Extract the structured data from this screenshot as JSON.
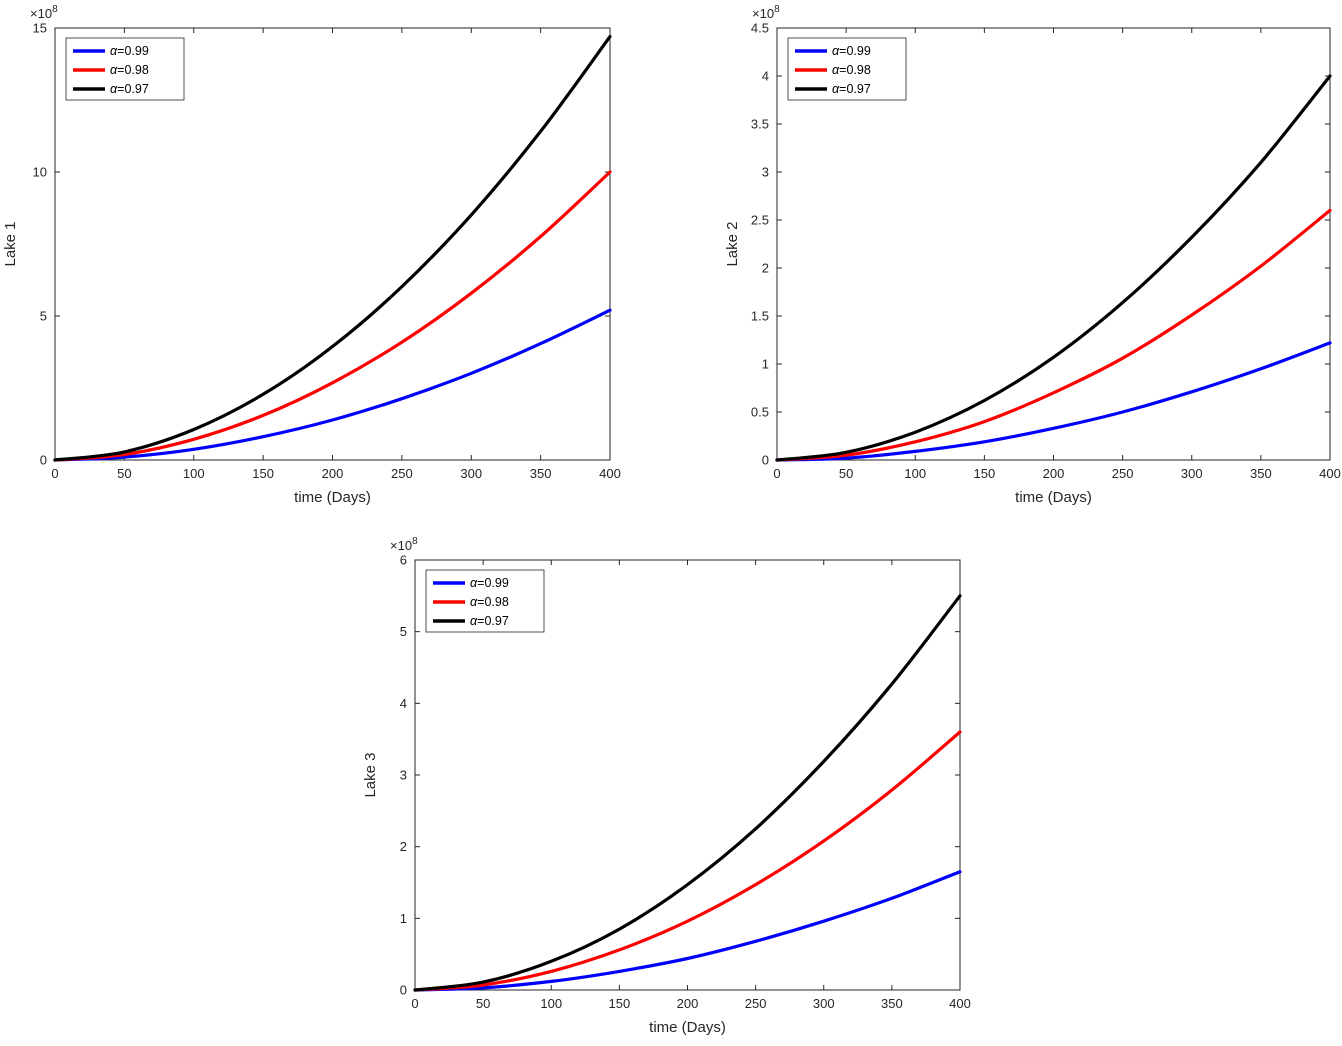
{
  "figure": {
    "background": "#ffffff"
  },
  "chart_data": [
    {
      "type": "line",
      "title": "",
      "ylabel": "Lake 1",
      "xlabel": "time (Days)",
      "y_scale_label": {
        "base": "×10",
        "power": "8"
      },
      "xlim": [
        0,
        400
      ],
      "ylim": [
        0,
        15
      ],
      "xticks": [
        0,
        50,
        100,
        150,
        200,
        250,
        300,
        350,
        400
      ],
      "yticks": [
        0,
        5,
        10,
        15
      ],
      "grid": false,
      "legend_position": "northwest",
      "x": [
        0,
        50,
        100,
        150,
        200,
        250,
        300,
        350,
        400
      ],
      "series": [
        {
          "name": "α=0.99",
          "color": "#0000ff",
          "values": [
            0,
            0.1,
            0.37,
            0.81,
            1.39,
            2.13,
            3.01,
            4.04,
            5.2
          ]
        },
        {
          "name": "α=0.98",
          "color": "#ff0000",
          "values": [
            0,
            0.19,
            0.72,
            1.55,
            2.68,
            4.09,
            5.79,
            7.76,
            10.0
          ]
        },
        {
          "name": "α=0.97",
          "color": "#000000",
          "values": [
            0,
            0.28,
            1.06,
            2.28,
            3.94,
            6.02,
            8.51,
            11.41,
            14.7
          ]
        }
      ]
    },
    {
      "type": "line",
      "title": "",
      "ylabel": "Lake 2",
      "xlabel": "time (Days)",
      "y_scale_label": {
        "base": "×10",
        "power": "8"
      },
      "xlim": [
        0,
        400
      ],
      "ylim": [
        0,
        4.5
      ],
      "xticks": [
        0,
        50,
        100,
        150,
        200,
        250,
        300,
        350,
        400
      ],
      "yticks": [
        0,
        0.5,
        1,
        1.5,
        2,
        2.5,
        3,
        3.5,
        4,
        4.5
      ],
      "grid": false,
      "legend_position": "northwest",
      "x": [
        0,
        50,
        100,
        150,
        200,
        250,
        300,
        350,
        400
      ],
      "series": [
        {
          "name": "α=0.99",
          "color": "#0000ff",
          "values": [
            0,
            0.02,
            0.09,
            0.19,
            0.33,
            0.5,
            0.71,
            0.95,
            1.22
          ]
        },
        {
          "name": "α=0.98",
          "color": "#ff0000",
          "values": [
            0,
            0.05,
            0.19,
            0.4,
            0.7,
            1.06,
            1.51,
            2.02,
            2.6
          ]
        },
        {
          "name": "α=0.97",
          "color": "#000000",
          "values": [
            0,
            0.08,
            0.29,
            0.62,
            1.07,
            1.64,
            2.32,
            3.1,
            4.0
          ]
        }
      ]
    },
    {
      "type": "line",
      "title": "",
      "ylabel": "Lake 3",
      "xlabel": "time (Days)",
      "y_scale_label": {
        "base": "×10",
        "power": "8"
      },
      "xlim": [
        0,
        400
      ],
      "ylim": [
        0,
        6
      ],
      "xticks": [
        0,
        50,
        100,
        150,
        200,
        250,
        300,
        350,
        400
      ],
      "yticks": [
        0,
        1,
        2,
        3,
        4,
        5,
        6
      ],
      "grid": false,
      "legend_position": "northwest",
      "x": [
        0,
        50,
        100,
        150,
        200,
        250,
        300,
        350,
        400
      ],
      "series": [
        {
          "name": "α=0.99",
          "color": "#0000ff",
          "values": [
            0,
            0.03,
            0.12,
            0.26,
            0.44,
            0.68,
            0.96,
            1.28,
            1.65
          ]
        },
        {
          "name": "α=0.98",
          "color": "#ff0000",
          "values": [
            0,
            0.07,
            0.26,
            0.56,
            0.96,
            1.47,
            2.08,
            2.79,
            3.6
          ]
        },
        {
          "name": "α=0.97",
          "color": "#000000",
          "values": [
            0,
            0.11,
            0.4,
            0.85,
            1.47,
            2.25,
            3.19,
            4.27,
            5.5
          ]
        }
      ]
    }
  ]
}
